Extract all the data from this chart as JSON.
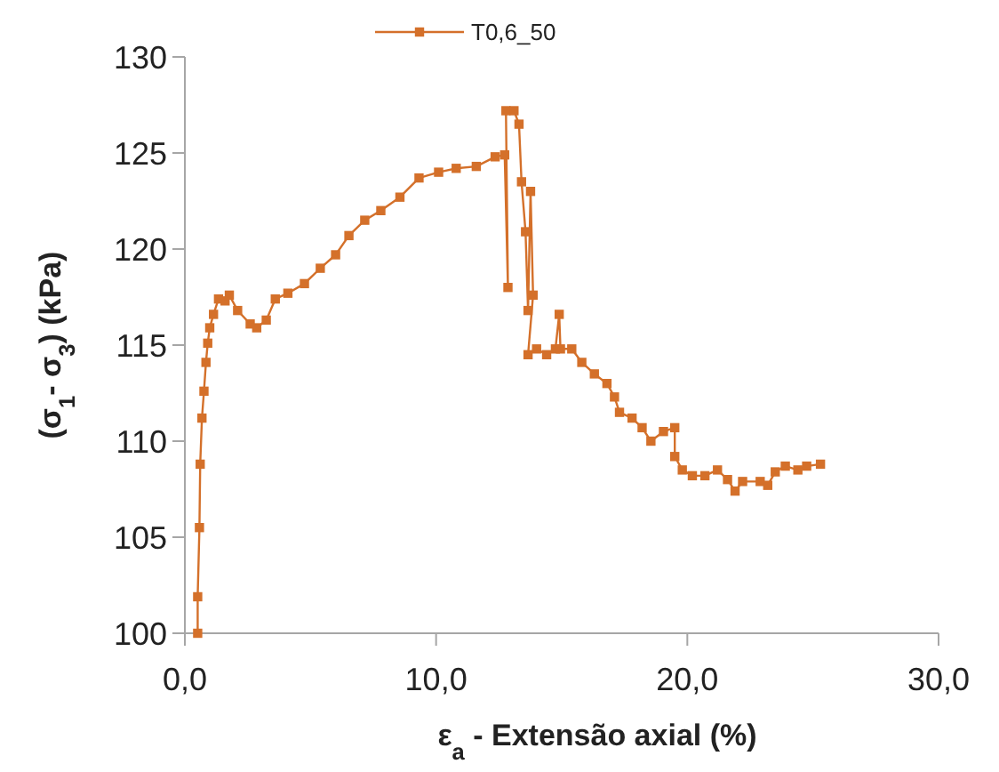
{
  "chart_data": {
    "type": "line",
    "xlabel": "ε$_{a}$ - Extensão axial (%)",
    "ylabel": "(σ$_{1}$- σ$_{3}$) (kPa)",
    "xlim": [
      0,
      30
    ],
    "xticks": [
      {
        "value": 0,
        "label": "0,0"
      },
      {
        "value": 10,
        "label": "10,0"
      },
      {
        "value": 20,
        "label": "20,0"
      },
      {
        "value": 30,
        "label": "30,0"
      }
    ],
    "ylim": [
      100,
      130
    ],
    "yticks": [
      100,
      105,
      110,
      115,
      120,
      125,
      130
    ],
    "grid": false,
    "legend": "top",
    "marker": "square",
    "line_style": "solid",
    "series": [
      {
        "name": "T0,6_50",
        "color": "#d4702a",
        "x": [
          0.51,
          0.51,
          0.58,
          0.61,
          0.68,
          0.76,
          0.84,
          0.91,
          0.99,
          1.14,
          1.34,
          1.6,
          1.77,
          2.1,
          2.6,
          2.86,
          3.24,
          3.6,
          4.1,
          4.76,
          5.39,
          6.0,
          6.53,
          7.16,
          7.8,
          8.56,
          9.32,
          10.1,
          10.8,
          11.6,
          12.35,
          12.73,
          12.86,
          12.78,
          13.1,
          13.3,
          13.4,
          13.56,
          13.66,
          13.76,
          13.86,
          13.66,
          14.0,
          14.4,
          14.75,
          14.9,
          14.95,
          15.4,
          15.8,
          16.3,
          16.8,
          17.1,
          17.3,
          17.8,
          18.2,
          18.55,
          19.05,
          19.5,
          19.5,
          19.8,
          20.2,
          20.7,
          21.2,
          21.6,
          21.9,
          22.2,
          22.9,
          23.2,
          23.5,
          23.9,
          24.4,
          24.75,
          25.3
        ],
        "values": [
          100,
          101.9,
          105.5,
          108.8,
          111.2,
          112.6,
          114.1,
          115.1,
          115.9,
          116.6,
          117.4,
          117.3,
          117.6,
          116.8,
          116.1,
          115.9,
          116.3,
          117.4,
          117.7,
          118.2,
          119.0,
          119.7,
          120.7,
          121.5,
          122.0,
          122.7,
          123.7,
          124.0,
          124.2,
          124.3,
          124.8,
          124.9,
          118.0,
          127.2,
          127.2,
          126.5,
          123.5,
          120.9,
          116.8,
          123.0,
          117.6,
          114.5,
          114.8,
          114.5,
          114.8,
          116.6,
          114.8,
          114.8,
          114.1,
          113.5,
          113.0,
          112.3,
          111.5,
          111.2,
          110.7,
          110.0,
          110.5,
          110.7,
          109.2,
          108.5,
          108.2,
          108.2,
          108.5,
          108.0,
          107.4,
          107.9,
          107.9,
          107.7,
          108.4,
          108.7,
          108.5,
          108.7,
          108.8
        ]
      }
    ]
  }
}
